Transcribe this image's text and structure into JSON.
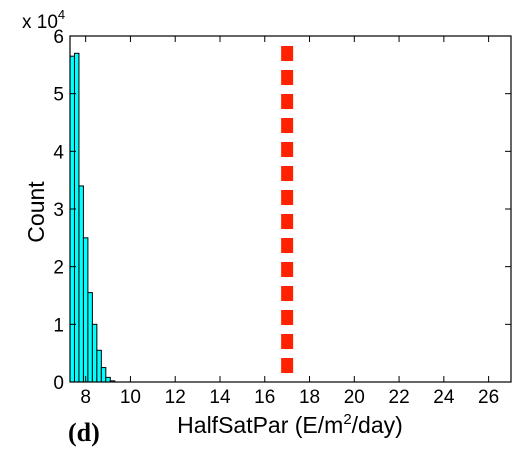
{
  "chart_data": {
    "type": "bar",
    "xlabel": "HalfSatPar (E/m",
    "xlabel_sup": "2",
    "xlabel_tail": "/day)",
    "ylabel": "Count",
    "y_multiplier_base": "x 10",
    "y_multiplier_exp": "4",
    "xlim": [
      7.3,
      27.0
    ],
    "ylim": [
      0,
      6
    ],
    "xticks": [
      8,
      10,
      12,
      14,
      16,
      18,
      20,
      22,
      24,
      26
    ],
    "yticks": [
      0,
      1,
      2,
      3,
      4,
      5,
      6
    ],
    "bin_width": 0.2,
    "bins": [
      {
        "x0": 7.3,
        "value": 5.65
      },
      {
        "x0": 7.5,
        "value": 5.7
      },
      {
        "x0": 7.7,
        "value": 3.4
      },
      {
        "x0": 7.9,
        "value": 2.5
      },
      {
        "x0": 8.1,
        "value": 1.55
      },
      {
        "x0": 8.3,
        "value": 1.0
      },
      {
        "x0": 8.5,
        "value": 0.55
      },
      {
        "x0": 8.7,
        "value": 0.25
      },
      {
        "x0": 8.9,
        "value": 0.08
      },
      {
        "x0": 9.1,
        "value": 0.02
      }
    ],
    "reference_line_x": 17.0,
    "colors": {
      "bars": "#00ffff",
      "reference_line": "#ff2200",
      "axes": "#000000"
    }
  },
  "panel_label": "(d)"
}
